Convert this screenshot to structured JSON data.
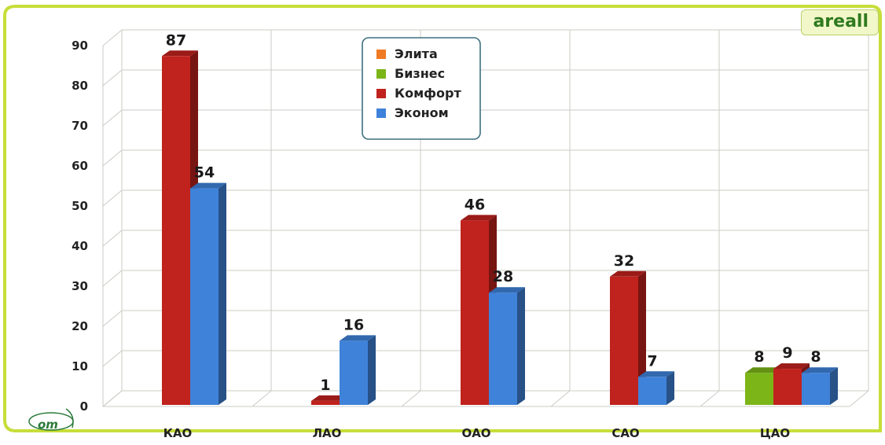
{
  "brand": "areall",
  "logo_text": "om",
  "chart_data": {
    "type": "bar",
    "categories": [
      "КАО",
      "ЛАО",
      "ОАО",
      "САО",
      "ЦАО"
    ],
    "series": [
      {
        "name": "Элита",
        "color": "#f07a24",
        "values": [
          null,
          null,
          null,
          null,
          null
        ]
      },
      {
        "name": "Бизнес",
        "color": "#7cb518",
        "values": [
          null,
          null,
          null,
          null,
          8
        ]
      },
      {
        "name": "Комфорт",
        "color": "#c0221d",
        "values": [
          87,
          1,
          46,
          32,
          9
        ]
      },
      {
        "name": "Эконом",
        "color": "#3f82d9",
        "values": [
          54,
          16,
          28,
          7,
          8
        ]
      }
    ],
    "y_ticks": [
      0,
      10,
      20,
      30,
      40,
      50,
      60,
      70,
      80,
      90
    ],
    "ylim": [
      0,
      90
    ],
    "grid": true,
    "legend_position": "top-center"
  }
}
